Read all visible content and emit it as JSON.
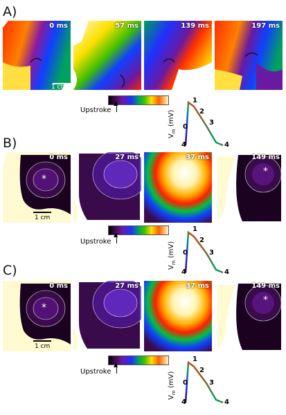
{
  "panels": [
    {
      "label": "A)",
      "times": [
        "0 ms",
        "57 ms",
        "139 ms",
        "197 ms"
      ],
      "scalebar": "1 cm",
      "colorbar_label": "Upstroke",
      "ap": {
        "ylabel": "V",
        "ylabel_sub": "m",
        "ylabel_unit": " (mV)",
        "zero": "0",
        "phases": [
          "1",
          "2",
          "3",
          "4",
          "4"
        ]
      }
    },
    {
      "label": "B)",
      "times": [
        "0 ms",
        "27 ms",
        "37 ms",
        "149 ms"
      ],
      "scalebar": "1 cm",
      "colorbar_label": "Upstroke",
      "ap": {
        "ylabel": "V",
        "ylabel_sub": "m",
        "ylabel_unit": " (mV)",
        "zero": "0",
        "phases": [
          "1",
          "2",
          "3",
          "4",
          "4"
        ]
      }
    },
    {
      "label": "C)",
      "times": [
        "0 ms",
        "27 ms",
        "37 ms",
        "149 ms"
      ],
      "scalebar": "1 cm",
      "colorbar_label": "Upstroke",
      "ap": {
        "ylabel": "V",
        "ylabel_sub": "m",
        "ylabel_unit": " (mV)",
        "zero": "0",
        "phases": [
          "1",
          "2",
          "3",
          "4",
          "4"
        ]
      }
    }
  ],
  "colors": {
    "colormap": [
      "#000000",
      "#3a0b4a",
      "#6a1aa0",
      "#2030ff",
      "#00a060",
      "#40c000",
      "#ffe000",
      "#ff8000",
      "#ff2000",
      "#fff9c0",
      "#ffffff"
    ]
  }
}
